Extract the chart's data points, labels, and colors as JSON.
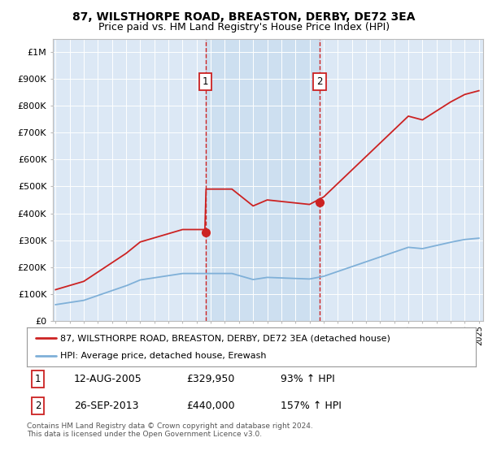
{
  "title1": "87, WILSTHORPE ROAD, BREASTON, DERBY, DE72 3EA",
  "title2": "Price paid vs. HM Land Registry's House Price Index (HPI)",
  "ylabel_ticks": [
    "£0",
    "£100K",
    "£200K",
    "£300K",
    "£400K",
    "£500K",
    "£600K",
    "£700K",
    "£800K",
    "£900K",
    "£1M"
  ],
  "ytick_vals": [
    0,
    100000,
    200000,
    300000,
    400000,
    500000,
    600000,
    700000,
    800000,
    900000,
    1000000
  ],
  "ylim": [
    0,
    1050000
  ],
  "xlim_start": 1994.8,
  "xlim_end": 2025.3,
  "hpi_color": "#7fb0d8",
  "price_color": "#cc2222",
  "marker1_date": 2005.62,
  "marker1_price": 329950,
  "marker2_date": 2013.73,
  "marker2_price": 440000,
  "annotation_text": "Contains HM Land Registry data © Crown copyright and database right 2024.\nThis data is licensed under the Open Government Licence v3.0.",
  "legend_label_red": "87, WILSTHORPE ROAD, BREASTON, DERBY, DE72 3EA (detached house)",
  "legend_label_blue": "HPI: Average price, detached house, Erewash",
  "note1_date": "12-AUG-2005",
  "note1_price": "£329,950",
  "note1_hpi": "93% ↑ HPI",
  "note2_date": "26-SEP-2013",
  "note2_price": "£440,000",
  "note2_hpi": "157% ↑ HPI",
  "chart_bg": "#dce8f5",
  "highlight_bg": "#cddff0"
}
